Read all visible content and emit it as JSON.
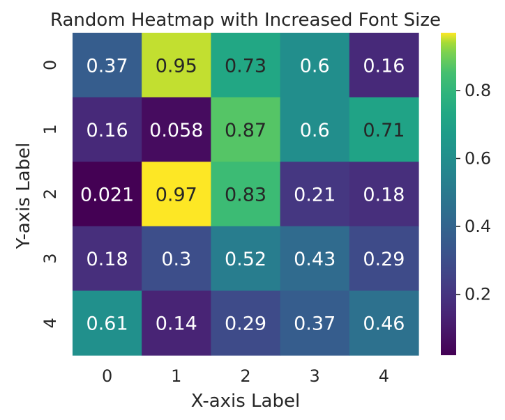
{
  "chart_data": {
    "type": "heatmap",
    "title": "Random Heatmap with Increased Font Size",
    "xlabel": "X-axis Label",
    "ylabel": "Y-axis Label",
    "x_categories": [
      "0",
      "1",
      "2",
      "3",
      "4"
    ],
    "y_categories": [
      "0",
      "1",
      "2",
      "3",
      "4"
    ],
    "values": [
      [
        0.37,
        0.95,
        0.73,
        0.6,
        0.16
      ],
      [
        0.16,
        0.058,
        0.87,
        0.6,
        0.71
      ],
      [
        0.021,
        0.97,
        0.83,
        0.21,
        0.18
      ],
      [
        0.18,
        0.3,
        0.52,
        0.43,
        0.29
      ],
      [
        0.61,
        0.14,
        0.29,
        0.37,
        0.46
      ]
    ],
    "annotations": [
      [
        "0.37",
        "0.95",
        "0.73",
        "0.6",
        "0.16"
      ],
      [
        "0.16",
        "0.058",
        "0.87",
        "0.6",
        "0.71"
      ],
      [
        "0.021",
        "0.97",
        "0.83",
        "0.21",
        "0.18"
      ],
      [
        "0.18",
        "0.3",
        "0.52",
        "0.43",
        "0.29"
      ],
      [
        "0.61",
        "0.14",
        "0.29",
        "0.37",
        "0.46"
      ]
    ],
    "colormap": "viridis",
    "colorbar": {
      "range": [
        0.021,
        0.97
      ],
      "ticks": [
        0.2,
        0.4,
        0.6,
        0.8
      ],
      "tick_labels": [
        "0.2",
        "0.4",
        "0.6",
        "0.8"
      ]
    }
  }
}
